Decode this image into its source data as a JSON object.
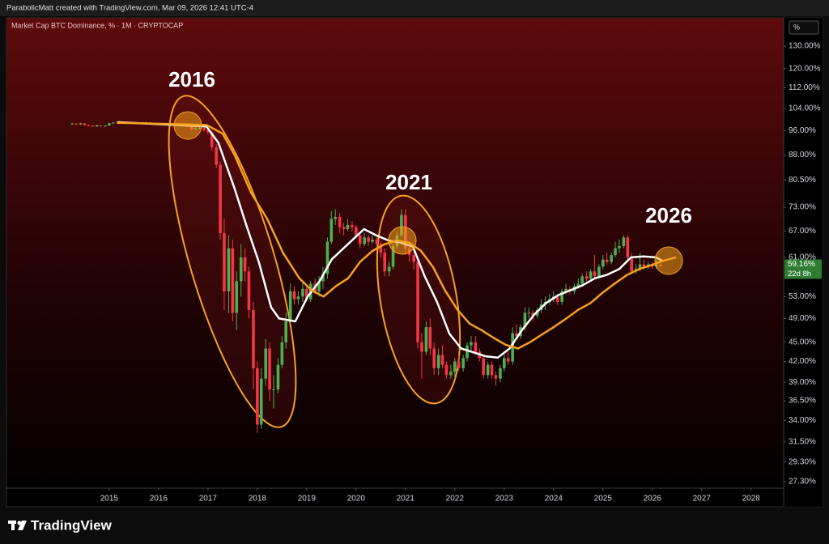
{
  "header": {
    "credit": "ParabolicMatt created with TradingView.com, Mar 09, 2026 12:41 UTC-4",
    "scale_button": "%"
  },
  "chart_data": {
    "type": "candlestick",
    "title": "Market Cap BTC Dominance, % · 1M · CRYPTOCAP",
    "log_scale": true,
    "grid": false,
    "up_color": "#4caf50",
    "down_color": "#f23645",
    "x": [
      2014.25,
      2014.33,
      2014.42,
      2014.5,
      2014.58,
      2014.67,
      2014.75,
      2014.83,
      2014.92,
      2015,
      2015.08,
      2015.17,
      2015.25,
      2015.33,
      2015.42,
      2015.5,
      2015.58,
      2015.67,
      2015.75,
      2015.83,
      2015.92,
      2016,
      2016.08,
      2016.17,
      2016.25,
      2016.33,
      2016.42,
      2016.5,
      2016.58,
      2016.67,
      2016.75,
      2016.83,
      2016.92,
      2017,
      2017.08,
      2017.17,
      2017.25,
      2017.33,
      2017.42,
      2017.5,
      2017.58,
      2017.67,
      2017.75,
      2017.83,
      2017.92,
      2018,
      2018.08,
      2018.17,
      2018.25,
      2018.33,
      2018.42,
      2018.5,
      2018.58,
      2018.67,
      2018.75,
      2018.83,
      2018.92,
      2019,
      2019.08,
      2019.17,
      2019.25,
      2019.33,
      2019.42,
      2019.5,
      2019.58,
      2019.67,
      2019.75,
      2019.83,
      2019.92,
      2020,
      2020.08,
      2020.17,
      2020.25,
      2020.33,
      2020.42,
      2020.5,
      2020.58,
      2020.67,
      2020.75,
      2020.83,
      2020.92,
      2021,
      2021.08,
      2021.17,
      2021.25,
      2021.33,
      2021.42,
      2021.5,
      2021.58,
      2021.67,
      2021.75,
      2021.83,
      2021.92,
      2022,
      2022.08,
      2022.17,
      2022.25,
      2022.33,
      2022.42,
      2022.5,
      2022.58,
      2022.67,
      2022.75,
      2022.83,
      2022.92,
      2023,
      2023.08,
      2023.17,
      2023.25,
      2023.33,
      2023.42,
      2023.5,
      2023.58,
      2023.67,
      2023.75,
      2023.83,
      2023.92,
      2024,
      2024.08,
      2024.17,
      2024.25,
      2024.33,
      2024.42,
      2024.5,
      2024.58,
      2024.67,
      2024.75,
      2024.83,
      2024.92,
      2025,
      2025.08,
      2025.17,
      2025.25,
      2025.33,
      2025.42,
      2025.5,
      2025.58,
      2025.67,
      2025.75,
      2025.83,
      2025.92,
      2026,
      2026.08,
      2026.17
    ],
    "ohlc": [
      [
        98.3,
        98.8,
        98.1,
        98.5
      ],
      [
        98.5,
        98.7,
        98.0,
        98.2
      ],
      [
        98.2,
        98.8,
        98.0,
        98.6
      ],
      [
        98.6,
        98.7,
        97.8,
        98.0
      ],
      [
        98.0,
        98.2,
        97.6,
        97.8
      ],
      [
        97.8,
        98.0,
        97.3,
        97.5
      ],
      [
        97.5,
        98.1,
        97.3,
        97.9
      ],
      [
        97.9,
        98.0,
        97.4,
        97.6
      ],
      [
        97.6,
        98.0,
        97.4,
        97.8
      ],
      [
        97.8,
        98.8,
        97.7,
        98.6
      ],
      [
        98.6,
        99.0,
        98.5,
        98.8
      ],
      [
        98.8,
        98.9,
        98.5,
        98.7
      ],
      [
        98.7,
        99.1,
        98.6,
        98.9
      ],
      [
        98.9,
        99.0,
        98.6,
        98.8
      ],
      [
        98.8,
        99.1,
        98.7,
        98.9
      ],
      [
        98.9,
        99.0,
        98.5,
        98.7
      ],
      [
        98.7,
        98.8,
        98.4,
        98.6
      ],
      [
        98.6,
        99.0,
        98.5,
        98.8
      ],
      [
        98.8,
        99.1,
        98.7,
        98.9
      ],
      [
        98.9,
        99.0,
        98.5,
        98.7
      ],
      [
        98.7,
        98.8,
        98.4,
        98.6
      ],
      [
        98.6,
        98.7,
        98.2,
        98.4
      ],
      [
        98.4,
        98.6,
        98.1,
        98.3
      ],
      [
        98.3,
        98.8,
        98.2,
        98.6
      ],
      [
        98.6,
        98.8,
        98.3,
        98.5
      ],
      [
        98.5,
        98.6,
        97.9,
        98.2
      ],
      [
        98.2,
        98.4,
        97.6,
        98.0
      ],
      [
        98.0,
        98.5,
        97.8,
        98.3
      ],
      [
        98.3,
        98.4,
        97.3,
        97.6
      ],
      [
        97.6,
        97.8,
        96.0,
        96.5
      ],
      [
        96.5,
        97.2,
        96.2,
        96.8
      ],
      [
        96.8,
        97.4,
        96.5,
        97.0
      ],
      [
        97.0,
        97.2,
        95.8,
        96.2
      ],
      [
        96.2,
        96.8,
        94.8,
        95.5
      ],
      [
        95.5,
        96.0,
        89.5,
        90.5
      ],
      [
        90.5,
        91.5,
        84.0,
        85.0
      ],
      [
        85.0,
        86.0,
        65.0,
        66.5
      ],
      [
        66.5,
        70.0,
        50.5,
        54.0
      ],
      [
        54.0,
        66.0,
        50.0,
        63.0
      ],
      [
        63.0,
        65.0,
        48.5,
        50.0
      ],
      [
        50.0,
        58.0,
        47.0,
        56.0
      ],
      [
        56.0,
        64.0,
        53.0,
        61.0
      ],
      [
        61.0,
        63.0,
        56.0,
        58.0
      ],
      [
        58.0,
        59.0,
        49.0,
        50.5
      ],
      [
        50.5,
        52.0,
        38.0,
        41.0
      ],
      [
        41.0,
        42.0,
        32.5,
        33.5
      ],
      [
        33.5,
        41.0,
        33.0,
        39.5
      ],
      [
        39.5,
        45.5,
        38.5,
        44.0
      ],
      [
        44.0,
        45.0,
        36.5,
        38.0
      ],
      [
        38.0,
        40.0,
        35.5,
        38.0
      ],
      [
        38.0,
        42.5,
        37.5,
        41.5
      ],
      [
        41.5,
        46.0,
        41.0,
        45.0
      ],
      [
        45.0,
        50.0,
        44.0,
        48.5
      ],
      [
        48.5,
        55.5,
        48.0,
        54.0
      ],
      [
        54.0,
        55.0,
        51.5,
        52.5
      ],
      [
        52.5,
        54.0,
        51.5,
        53.0
      ],
      [
        53.0,
        56.0,
        52.0,
        54.5
      ],
      [
        54.5,
        55.0,
        52.0,
        52.5
      ],
      [
        52.5,
        56.0,
        52.0,
        55.5
      ],
      [
        55.5,
        56.5,
        53.5,
        54.0
      ],
      [
        54.0,
        57.0,
        53.0,
        56.0
      ],
      [
        56.0,
        59.0,
        54.5,
        57.5
      ],
      [
        57.5,
        65.5,
        56.5,
        64.5
      ],
      [
        64.5,
        72.0,
        64.0,
        70.0
      ],
      [
        70.0,
        72.5,
        68.5,
        70.5
      ],
      [
        70.5,
        71.5,
        66.5,
        68.0
      ],
      [
        68.0,
        69.0,
        66.0,
        67.5
      ],
      [
        67.5,
        70.0,
        67.0,
        68.5
      ],
      [
        68.5,
        69.5,
        67.0,
        68.0
      ],
      [
        68.0,
        68.5,
        65.5,
        66.0
      ],
      [
        66.0,
        66.5,
        63.0,
        64.0
      ],
      [
        64.0,
        66.5,
        63.5,
        65.5
      ],
      [
        65.5,
        66.0,
        63.5,
        64.5
      ],
      [
        64.5,
        66.0,
        64.0,
        65.0
      ],
      [
        65.0,
        65.5,
        63.0,
        64.0
      ],
      [
        64.0,
        64.5,
        61.0,
        62.0
      ],
      [
        62.0,
        63.0,
        57.0,
        58.0
      ],
      [
        58.0,
        60.0,
        57.0,
        59.0
      ],
      [
        59.0,
        64.0,
        58.5,
        63.5
      ],
      [
        63.5,
        67.0,
        63.0,
        66.0
      ],
      [
        66.0,
        72.5,
        65.5,
        71.0
      ],
      [
        71.0,
        72.5,
        61.5,
        63.0
      ],
      [
        63.0,
        64.5,
        60.0,
        61.5
      ],
      [
        61.5,
        62.5,
        58.5,
        60.0
      ],
      [
        60.0,
        61.0,
        44.0,
        45.0
      ],
      [
        45.0,
        46.5,
        39.5,
        43.5
      ],
      [
        43.5,
        48.5,
        43.0,
        47.5
      ],
      [
        47.5,
        49.0,
        43.0,
        44.0
      ],
      [
        44.0,
        45.0,
        40.0,
        41.0
      ],
      [
        41.0,
        44.0,
        40.0,
        43.0
      ],
      [
        43.0,
        44.5,
        41.0,
        41.5
      ],
      [
        41.5,
        42.0,
        39.5,
        40.0
      ],
      [
        40.0,
        41.5,
        39.5,
        40.5
      ],
      [
        40.5,
        42.5,
        39.5,
        42.0
      ],
      [
        42.0,
        43.0,
        40.5,
        41.0
      ],
      [
        41.0,
        43.0,
        40.5,
        42.5
      ],
      [
        42.5,
        45.0,
        42.0,
        44.5
      ],
      [
        44.5,
        46.0,
        43.5,
        45.0
      ],
      [
        45.0,
        46.0,
        43.0,
        43.5
      ],
      [
        43.5,
        44.0,
        42.0,
        42.5
      ],
      [
        42.5,
        43.0,
        39.5,
        40.0
      ],
      [
        40.0,
        42.0,
        39.5,
        41.5
      ],
      [
        41.5,
        42.0,
        39.5,
        40.0
      ],
      [
        40.0,
        40.5,
        38.5,
        39.5
      ],
      [
        39.5,
        41.5,
        39.0,
        41.0
      ],
      [
        41.0,
        43.0,
        40.5,
        42.5
      ],
      [
        42.5,
        43.5,
        41.5,
        42.0
      ],
      [
        42.0,
        47.5,
        41.5,
        46.5
      ],
      [
        46.5,
        48.0,
        45.5,
        46.0
      ],
      [
        46.0,
        48.0,
        45.5,
        47.5
      ],
      [
        47.5,
        51.0,
        47.0,
        50.0
      ],
      [
        50.0,
        51.0,
        49.0,
        50.0
      ],
      [
        50.0,
        50.5,
        48.5,
        49.5
      ],
      [
        49.5,
        51.0,
        49.0,
        50.5
      ],
      [
        50.5,
        52.5,
        50.0,
        51.5
      ],
      [
        51.5,
        53.0,
        50.5,
        52.0
      ],
      [
        52.0,
        53.5,
        51.5,
        52.5
      ],
      [
        52.5,
        54.0,
        52.0,
        53.0
      ],
      [
        53.0,
        53.5,
        51.5,
        52.0
      ],
      [
        52.0,
        54.5,
        51.5,
        54.0
      ],
      [
        54.0,
        55.5,
        53.5,
        54.5
      ],
      [
        54.5,
        55.0,
        53.5,
        54.0
      ],
      [
        54.0,
        55.5,
        53.5,
        55.0
      ],
      [
        55.0,
        56.5,
        54.5,
        55.5
      ],
      [
        55.5,
        57.5,
        55.0,
        57.0
      ],
      [
        57.0,
        58.0,
        56.0,
        56.5
      ],
      [
        56.5,
        58.5,
        56.0,
        58.0
      ],
      [
        58.0,
        61.5,
        56.5,
        57.0
      ],
      [
        57.0,
        59.5,
        56.5,
        59.0
      ],
      [
        59.0,
        61.5,
        58.5,
        60.5
      ],
      [
        60.5,
        62.0,
        59.5,
        60.0
      ],
      [
        60.0,
        62.0,
        59.5,
        61.5
      ],
      [
        61.5,
        64.5,
        61.0,
        63.0
      ],
      [
        63.0,
        65.0,
        62.0,
        63.5
      ],
      [
        63.5,
        66.0,
        63.0,
        65.5
      ],
      [
        65.5,
        66.0,
        60.5,
        61.0
      ],
      [
        61.0,
        62.0,
        57.5,
        58.0
      ],
      [
        58.0,
        59.5,
        57.5,
        58.5
      ],
      [
        58.5,
        62.0,
        58.0,
        59.5
      ],
      [
        59.5,
        60.5,
        58.5,
        59.0
      ],
      [
        59.0,
        60.0,
        58.5,
        59.5
      ],
      [
        59.5,
        60.0,
        58.5,
        59.0
      ],
      [
        59.0,
        60.5,
        58.5,
        59.4
      ],
      [
        59.4,
        60.0,
        58.8,
        59.16
      ]
    ],
    "lines": [
      {
        "color": "#ffffff",
        "x": [
          2015.16,
          2016.97,
          2017.21,
          2017.54,
          2017.79,
          2018.03,
          2018.28,
          2018.44,
          2018.77,
          2019.02,
          2019.26,
          2019.51,
          2019.84,
          2020.16,
          2020.41,
          2020.66,
          2020.9,
          2021.15,
          2021.39,
          2021.64,
          2021.89,
          2022.13,
          2022.38,
          2022.62,
          2022.87,
          2023.11,
          2023.36,
          2023.61,
          2023.85,
          2024.1,
          2024.34,
          2024.59,
          2024.84,
          2025.08,
          2025.33,
          2025.57,
          2025.82,
          2026.07,
          2026.2
        ],
        "values": [
          99,
          97.5,
          92,
          78,
          68,
          60,
          51,
          49,
          48.5,
          53,
          56,
          60.6,
          64,
          67.5,
          66,
          64.8,
          64.3,
          63.4,
          57,
          52,
          46.4,
          44,
          43.4,
          42.8,
          42.6,
          44,
          47,
          49.7,
          51.8,
          53.3,
          54.2,
          55.2,
          56.6,
          57.3,
          58.5,
          61,
          61.2,
          61,
          60.3
        ]
      },
      {
        "color": "#f5a21b",
        "x": [
          2015.16,
          2016.97,
          2017.3,
          2017.54,
          2017.87,
          2018.2,
          2018.52,
          2018.85,
          2019.1,
          2019.34,
          2019.59,
          2019.84,
          2020.08,
          2020.33,
          2020.57,
          2020.82,
          2021.07,
          2021.31,
          2021.56,
          2021.8,
          2022.05,
          2022.3,
          2022.54,
          2022.79,
          2023.03,
          2023.28,
          2023.52,
          2023.77,
          2024.02,
          2024.26,
          2024.51,
          2024.75,
          2025,
          2025.25,
          2025.49,
          2025.74,
          2025.98,
          2026.23,
          2026.48
        ],
        "values": [
          98.8,
          98,
          95,
          88,
          77,
          70,
          62,
          56.6,
          54.2,
          53,
          55,
          56.6,
          60,
          62.4,
          63.9,
          64.8,
          64.3,
          62.5,
          58.9,
          54.2,
          50.6,
          48.1,
          47,
          45.7,
          44.6,
          44,
          45,
          46.3,
          47.6,
          49,
          50.6,
          51.8,
          53.8,
          55.6,
          57.3,
          58.5,
          59.3,
          60.3,
          61
        ]
      }
    ],
    "annotations": [
      "2016",
      "2021",
      "2026"
    ],
    "last_price": {
      "value": 59.16,
      "label": "59.16%"
    },
    "countdown": "22d 8h",
    "xlim": [
      2012.92,
      2028.66
    ],
    "xticks": [
      2015,
      2016,
      2017,
      2018,
      2019,
      2020,
      2021,
      2022,
      2023,
      2024,
      2025,
      2026,
      2027,
      2028
    ],
    "ylim": [
      26.68,
      143.9
    ],
    "yticks": [
      {
        "value": 130,
        "label": "130.00%"
      },
      {
        "value": 120,
        "label": "120.00%"
      },
      {
        "value": 112,
        "label": "112.00%"
      },
      {
        "value": 104,
        "label": "104.00%"
      },
      {
        "value": 96,
        "label": "96.00%"
      },
      {
        "value": 88,
        "label": "88.00%"
      },
      {
        "value": 80.5,
        "label": "80.50%"
      },
      {
        "value": 73,
        "label": "73.00%"
      },
      {
        "value": 67,
        "label": "67.00%"
      },
      {
        "value": 61,
        "label": "61.00%"
      },
      {
        "value": 53,
        "label": "53.00%"
      },
      {
        "value": 49,
        "label": "49.00%"
      },
      {
        "value": 45,
        "label": "45.00%"
      },
      {
        "value": 42,
        "label": "42.00%"
      },
      {
        "value": 39,
        "label": "39.00%"
      },
      {
        "value": 36.5,
        "label": "36.50%"
      },
      {
        "value": 34,
        "label": "34.00%"
      },
      {
        "value": 31.5,
        "label": "31.50%"
      },
      {
        "value": 29.3,
        "label": "29.30%"
      },
      {
        "value": 27.3,
        "label": "27.30%"
      }
    ]
  },
  "footer": {
    "brand": "TradingView"
  }
}
